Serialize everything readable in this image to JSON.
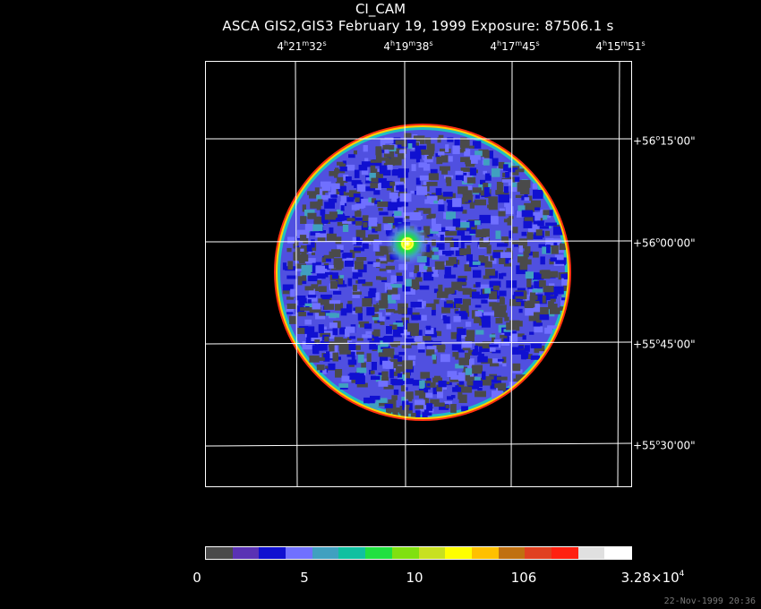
{
  "title": "CI_CAM",
  "subtitle": "ASCA GIS2,GIS3 February 19, 1999 Exposure: 87506.1 s",
  "ra_labels": [
    {
      "h": "4",
      "m": "21",
      "s": "32"
    },
    {
      "h": "4",
      "m": "19",
      "s": "38"
    },
    {
      "h": "4",
      "m": "17",
      "s": "45"
    },
    {
      "h": "4",
      "m": "15",
      "s": "51"
    }
  ],
  "dec_labels": [
    {
      "d": "+56",
      "m": "15",
      "s": "00"
    },
    {
      "d": "+56",
      "m": "00",
      "s": "00"
    },
    {
      "d": "+55",
      "m": "45",
      "s": "00"
    },
    {
      "d": "+55",
      "m": "30",
      "s": "00"
    }
  ],
  "colorbar": {
    "colors": [
      "#4a4a4a",
      "#5a32b4",
      "#1010d0",
      "#7070ff",
      "#40a0c0",
      "#10c0a0",
      "#20e040",
      "#80e010",
      "#c8e020",
      "#ffff00",
      "#ffc000",
      "#c07010",
      "#e04020",
      "#ff2010",
      "#e0e0e0",
      "#ffffff"
    ],
    "labels": [
      "0",
      "5",
      "10",
      "106"
    ],
    "max_mantissa": "3.28×10",
    "max_exponent": "4"
  },
  "timestamp": "22-Nov-1999 20:36"
}
